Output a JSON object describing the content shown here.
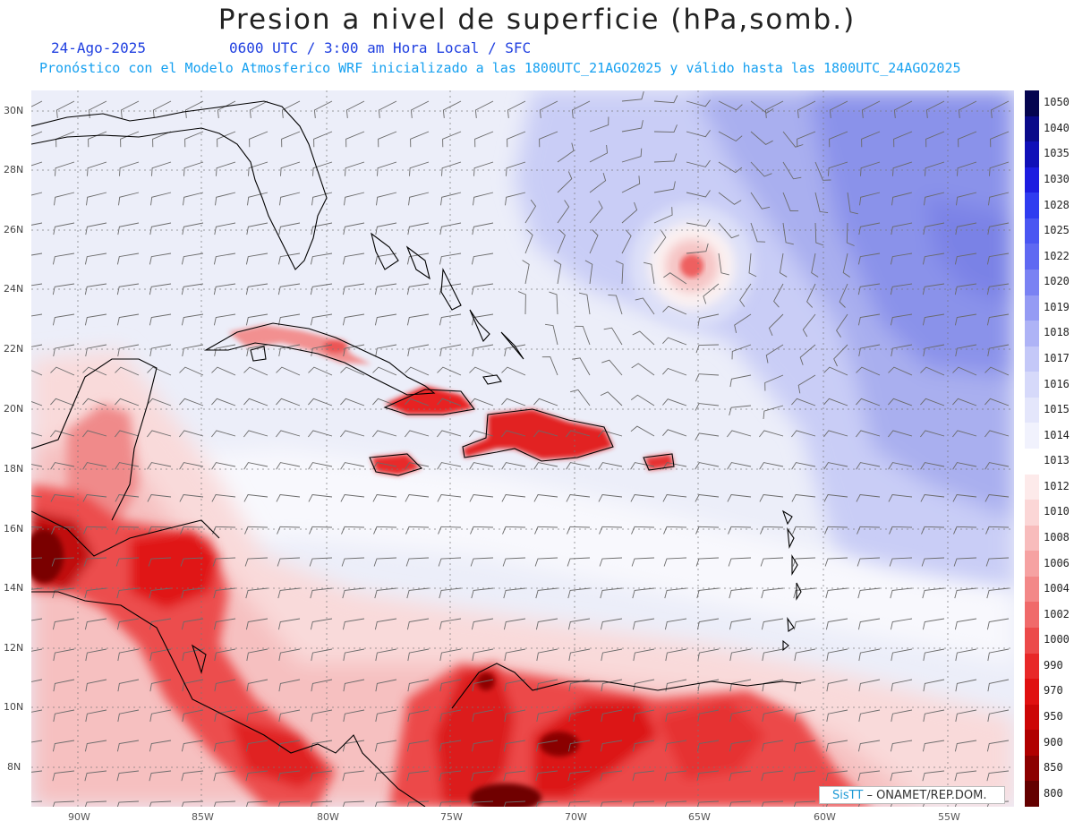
{
  "header": {
    "title": "Presion a nivel de superficie (hPa,somb.)",
    "date": "24-Ago-2025",
    "time_info": "0600 UTC / 3:00 am Hora Local / SFC",
    "model_info": "Pronóstico con el Modelo Atmosferico WRF inicializado a las 1800UTC_21AGO2025 y válido hasta las  1800UTC_24AGO2025"
  },
  "map": {
    "lat_labels": [
      "30N",
      "28N",
      "26N",
      "24N",
      "22N",
      "20N",
      "18N",
      "16N",
      "14N",
      "12N",
      "10N",
      "8N"
    ],
    "lon_labels": [
      "90W",
      "85W",
      "80W",
      "75W",
      "70W",
      "65W",
      "60W",
      "55W"
    ],
    "credit_brand": "SisTT",
    "credit_text": "– ONAMET/REP.DOM."
  },
  "colorbar": {
    "levels": [
      {
        "label": "1050",
        "color": "#050550"
      },
      {
        "label": "1040",
        "color": "#0a0a8a"
      },
      {
        "label": "1035",
        "color": "#1010b8"
      },
      {
        "label": "1030",
        "color": "#1c1ce0"
      },
      {
        "label": "1028",
        "color": "#2f3cf0"
      },
      {
        "label": "1025",
        "color": "#4a56f2"
      },
      {
        "label": "1022",
        "color": "#5f69f2"
      },
      {
        "label": "1020",
        "color": "#7a82f3"
      },
      {
        "label": "1019",
        "color": "#959bf4"
      },
      {
        "label": "1018",
        "color": "#aeb3f6"
      },
      {
        "label": "1017",
        "color": "#c4c8f8"
      },
      {
        "label": "1016",
        "color": "#d6d9fa"
      },
      {
        "label": "1015",
        "color": "#e4e6fb"
      },
      {
        "label": "1014",
        "color": "#f1f2fd"
      },
      {
        "label": "1013",
        "color": "#ffffff"
      },
      {
        "label": "1012",
        "color": "#fdeaea"
      },
      {
        "label": "1010",
        "color": "#fbd6d6"
      },
      {
        "label": "1008",
        "color": "#f8bcbc"
      },
      {
        "label": "1006",
        "color": "#f6a2a2"
      },
      {
        "label": "1004",
        "color": "#f38888"
      },
      {
        "label": "1002",
        "color": "#f06a6a"
      },
      {
        "label": "1000",
        "color": "#ec4a4a"
      },
      {
        "label": "990",
        "color": "#e82828"
      },
      {
        "label": "970",
        "color": "#e01010"
      },
      {
        "label": "950",
        "color": "#cc0606"
      },
      {
        "label": "900",
        "color": "#b00000"
      },
      {
        "label": "850",
        "color": "#8c0000"
      },
      {
        "label": "800",
        "color": "#640000"
      }
    ]
  }
}
